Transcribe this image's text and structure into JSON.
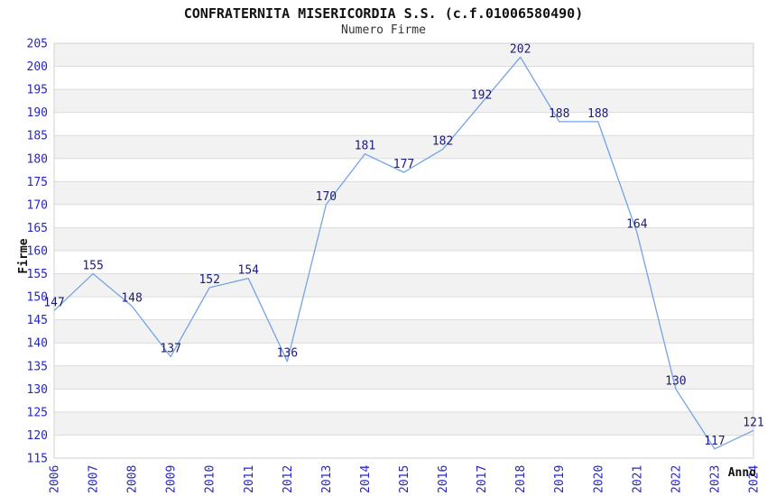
{
  "page": {
    "title": "CONFRATERNITA MISERICORDIA S.S. (c.f.01006580490)",
    "subtitle": "Numero Firme"
  },
  "chart_data": {
    "type": "line",
    "title": "CONFRATERNITA MISERICORDIA S.S. (c.f.01006580490)",
    "subtitle": "Numero Firme",
    "xlabel": "Anno",
    "ylabel": "Firme",
    "categories": [
      "2006",
      "2007",
      "2008",
      "2009",
      "2010",
      "2011",
      "2012",
      "2013",
      "2014",
      "2015",
      "2016",
      "2017",
      "2018",
      "2019",
      "2020",
      "2021",
      "2022",
      "2023",
      "2024"
    ],
    "series": [
      {
        "name": "Numero Firme",
        "values": [
          147,
          155,
          148,
          137,
          152,
          154,
          136,
          170,
          181,
          177,
          182,
          192,
          202,
          188,
          188,
          164,
          130,
          117,
          121
        ]
      }
    ],
    "values": [
      147,
      155,
      148,
      137,
      152,
      154,
      136,
      170,
      181,
      177,
      182,
      192,
      202,
      188,
      188,
      164,
      130,
      117,
      121
    ],
    "ylim": [
      115,
      205
    ],
    "ytick_step": 5,
    "yticks": [
      205,
      200,
      195,
      190,
      185,
      180,
      175,
      170,
      165,
      160,
      155,
      150,
      145,
      140,
      135,
      130,
      125,
      120,
      115
    ],
    "grid": true,
    "legend": "none",
    "markers": "none",
    "data_labels_shown": true,
    "band_pattern": "alternating horizontal stripes every 5 units, gray topmost (200-205)",
    "xtick_rotation_deg": 90,
    "colors": {
      "line": "#74a3e3",
      "tick_label": "#2424cc",
      "data_label": "#1b1b78",
      "band": "#f2f2f2",
      "gridline": "#dcdcdc",
      "plot_border": "#d0d0d0",
      "title": "#111111",
      "subtitle": "#333333",
      "axis_title": "#111111",
      "background": "#ffffff"
    }
  }
}
